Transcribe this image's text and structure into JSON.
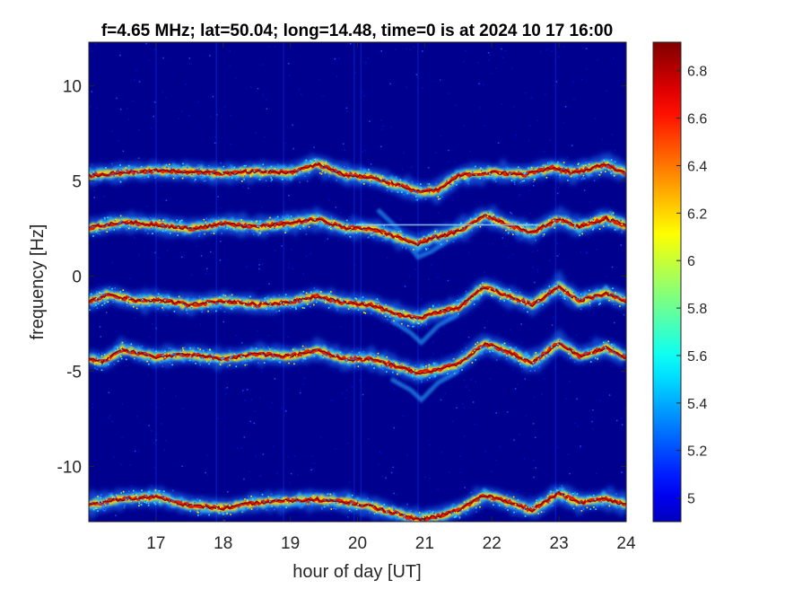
{
  "chart_data": {
    "type": "heatmap",
    "title": "f=4.65 MHz;  lat=50.04; long=14.48, time=0 is at 2024 10 17 16:00",
    "xlabel": "hour of day [UT]",
    "ylabel": "frequency [Hz]",
    "xlim": [
      16,
      24
    ],
    "ylim": [
      -12.9,
      12.3
    ],
    "x_ticks": [
      17,
      18,
      19,
      20,
      21,
      22,
      23,
      24
    ],
    "y_ticks": [
      10,
      5,
      0,
      -5,
      -10
    ],
    "colorbar": {
      "range": [
        4.9,
        6.92
      ],
      "ticks": [
        4.9,
        5,
        5.2,
        5.4,
        5.6,
        5.8,
        6,
        6.2,
        6.4,
        6.6,
        6.8
      ],
      "tick_labels": [
        "",
        "5",
        "5.2",
        "5.4",
        "5.6",
        "5.8",
        "6",
        "6.2",
        "6.4",
        "6.6",
        "6.8"
      ],
      "colormap": "jet"
    },
    "background_color": "#00008f",
    "traces": [
      {
        "name_hint": "trace-upper",
        "base": 5.4,
        "points": [
          [
            16.0,
            5.3
          ],
          [
            16.5,
            5.45
          ],
          [
            17.0,
            5.55
          ],
          [
            17.5,
            5.5
          ],
          [
            18.0,
            5.4
          ],
          [
            18.5,
            5.5
          ],
          [
            19.0,
            5.45
          ],
          [
            19.4,
            5.9
          ],
          [
            19.8,
            5.35
          ],
          [
            20.2,
            5.2
          ],
          [
            20.6,
            4.8
          ],
          [
            20.9,
            4.45
          ],
          [
            21.2,
            4.5
          ],
          [
            21.5,
            5.3
          ],
          [
            22.0,
            5.45
          ],
          [
            22.5,
            5.35
          ],
          [
            22.9,
            5.7
          ],
          [
            23.2,
            5.45
          ],
          [
            23.7,
            5.85
          ],
          [
            24.0,
            5.4
          ]
        ]
      },
      {
        "name_hint": "trace-2",
        "base": 2.7,
        "points": [
          [
            16.0,
            2.55
          ],
          [
            16.5,
            2.85
          ],
          [
            17.0,
            2.7
          ],
          [
            17.5,
            2.5
          ],
          [
            18.0,
            2.75
          ],
          [
            18.5,
            2.6
          ],
          [
            19.0,
            2.8
          ],
          [
            19.4,
            3.0
          ],
          [
            19.8,
            2.55
          ],
          [
            20.2,
            2.5
          ],
          [
            20.6,
            2.05
          ],
          [
            20.9,
            1.7
          ],
          [
            21.1,
            2.0
          ],
          [
            21.5,
            2.35
          ],
          [
            21.9,
            3.2
          ],
          [
            22.2,
            2.75
          ],
          [
            22.6,
            2.3
          ],
          [
            23.0,
            3.0
          ],
          [
            23.3,
            2.6
          ],
          [
            23.7,
            3.05
          ],
          [
            24.0,
            2.65
          ]
        ]
      },
      {
        "name_hint": "trace-3",
        "base": -1.3,
        "points": [
          [
            16.0,
            -1.35
          ],
          [
            16.3,
            -0.95
          ],
          [
            16.7,
            -1.3
          ],
          [
            17.0,
            -1.25
          ],
          [
            17.5,
            -1.5
          ],
          [
            18.0,
            -1.3
          ],
          [
            18.5,
            -1.5
          ],
          [
            19.0,
            -1.35
          ],
          [
            19.4,
            -1.05
          ],
          [
            19.8,
            -1.4
          ],
          [
            20.2,
            -1.5
          ],
          [
            20.6,
            -2.0
          ],
          [
            20.9,
            -2.25
          ],
          [
            21.1,
            -1.95
          ],
          [
            21.5,
            -1.65
          ],
          [
            21.9,
            -0.55
          ],
          [
            22.2,
            -1.0
          ],
          [
            22.6,
            -1.5
          ],
          [
            23.0,
            -0.55
          ],
          [
            23.3,
            -1.3
          ],
          [
            23.7,
            -0.9
          ],
          [
            24.0,
            -1.35
          ]
        ]
      },
      {
        "name_hint": "trace-4",
        "base": -4.2,
        "points": [
          [
            16.0,
            -4.35
          ],
          [
            16.2,
            -4.5
          ],
          [
            16.5,
            -3.85
          ],
          [
            17.0,
            -4.25
          ],
          [
            17.5,
            -4.1
          ],
          [
            18.0,
            -4.35
          ],
          [
            18.5,
            -4.1
          ],
          [
            19.0,
            -4.2
          ],
          [
            19.4,
            -3.9
          ],
          [
            19.8,
            -4.35
          ],
          [
            20.2,
            -4.35
          ],
          [
            20.6,
            -4.75
          ],
          [
            20.9,
            -5.1
          ],
          [
            21.2,
            -4.9
          ],
          [
            21.5,
            -4.6
          ],
          [
            21.9,
            -3.55
          ],
          [
            22.2,
            -3.9
          ],
          [
            22.6,
            -4.55
          ],
          [
            23.0,
            -3.5
          ],
          [
            23.3,
            -4.2
          ],
          [
            23.7,
            -3.75
          ],
          [
            24.0,
            -4.3
          ]
        ]
      },
      {
        "name_hint": "trace-lower",
        "base": -11.9,
        "points": [
          [
            16.0,
            -12.0
          ],
          [
            16.5,
            -11.7
          ],
          [
            17.0,
            -11.6
          ],
          [
            17.5,
            -12.05
          ],
          [
            18.0,
            -12.2
          ],
          [
            18.5,
            -11.9
          ],
          [
            19.0,
            -11.8
          ],
          [
            19.4,
            -11.75
          ],
          [
            19.8,
            -11.85
          ],
          [
            20.2,
            -12.1
          ],
          [
            20.6,
            -12.5
          ],
          [
            20.9,
            -12.8
          ],
          [
            21.2,
            -12.6
          ],
          [
            21.5,
            -12.3
          ],
          [
            21.9,
            -11.5
          ],
          [
            22.2,
            -11.8
          ],
          [
            22.6,
            -12.3
          ],
          [
            23.0,
            -11.4
          ],
          [
            23.3,
            -11.9
          ],
          [
            23.7,
            -11.7
          ],
          [
            24.0,
            -12.0
          ]
        ]
      }
    ],
    "ghost_traces": [
      {
        "points": [
          [
            20.3,
            3.5
          ],
          [
            20.6,
            2.5
          ],
          [
            20.9,
            1.0
          ],
          [
            21.1,
            1.3
          ],
          [
            21.4,
            2.0
          ]
        ]
      },
      {
        "points": [
          [
            20.5,
            -2.3
          ],
          [
            20.8,
            -3.0
          ],
          [
            20.95,
            -3.5
          ],
          [
            21.2,
            -2.6
          ],
          [
            21.5,
            -2.0
          ]
        ]
      },
      {
        "points": [
          [
            20.5,
            -5.4
          ],
          [
            20.8,
            -6.0
          ],
          [
            20.95,
            -6.5
          ],
          [
            21.2,
            -5.6
          ],
          [
            21.5,
            -5.0
          ]
        ]
      }
    ],
    "horizontal_line": {
      "y": 2.7,
      "x_range": [
        20.0,
        22.7
      ]
    },
    "vertical_streaks": [
      17.0,
      17.9,
      18.9,
      19.95,
      20.05,
      20.9,
      22.95
    ]
  }
}
